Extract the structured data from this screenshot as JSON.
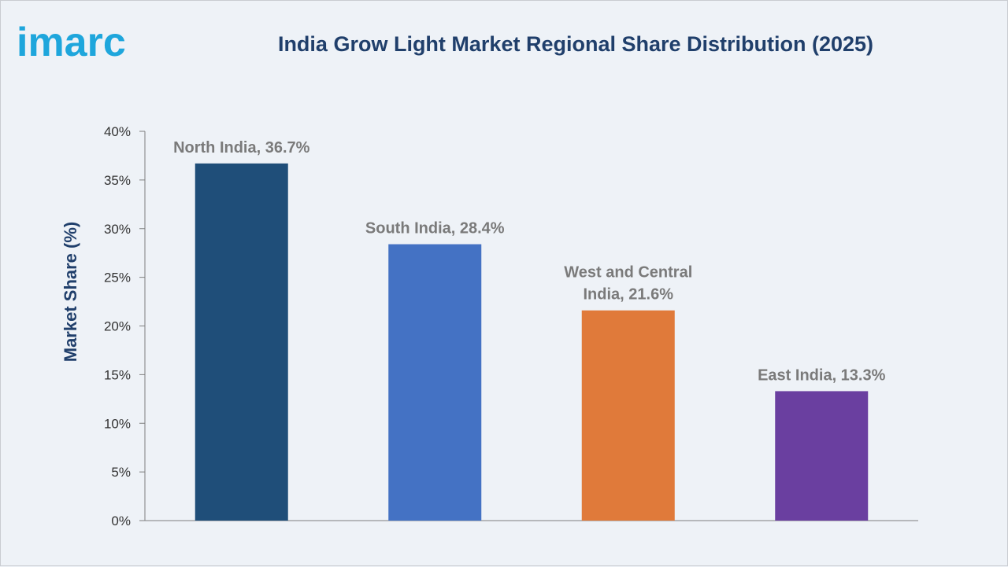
{
  "logo": {
    "text": "imarc",
    "color": "#1ea6dc"
  },
  "chart_data": {
    "type": "bar",
    "title": "India Grow Light Market Regional Share Distribution (2025)",
    "xlabel": "",
    "ylabel": "Market Share (%)",
    "ylim": [
      0,
      40
    ],
    "yticks": [
      "0%",
      "5%",
      "10%",
      "15%",
      "20%",
      "25%",
      "30%",
      "35%",
      "40%"
    ],
    "grid": false,
    "categories": [
      "North India",
      "South India",
      "West and Central India",
      "East India"
    ],
    "values": [
      36.7,
      28.4,
      21.6,
      13.3
    ],
    "colors": [
      "#1f4e79",
      "#4472c4",
      "#e07a3a",
      "#6a3fa0"
    ],
    "data_labels": [
      [
        "North India, 36.7%"
      ],
      [
        "South India, 28.4%"
      ],
      [
        "West and Central",
        "India, 21.6%"
      ],
      [
        "East India, 13.3%"
      ]
    ]
  }
}
